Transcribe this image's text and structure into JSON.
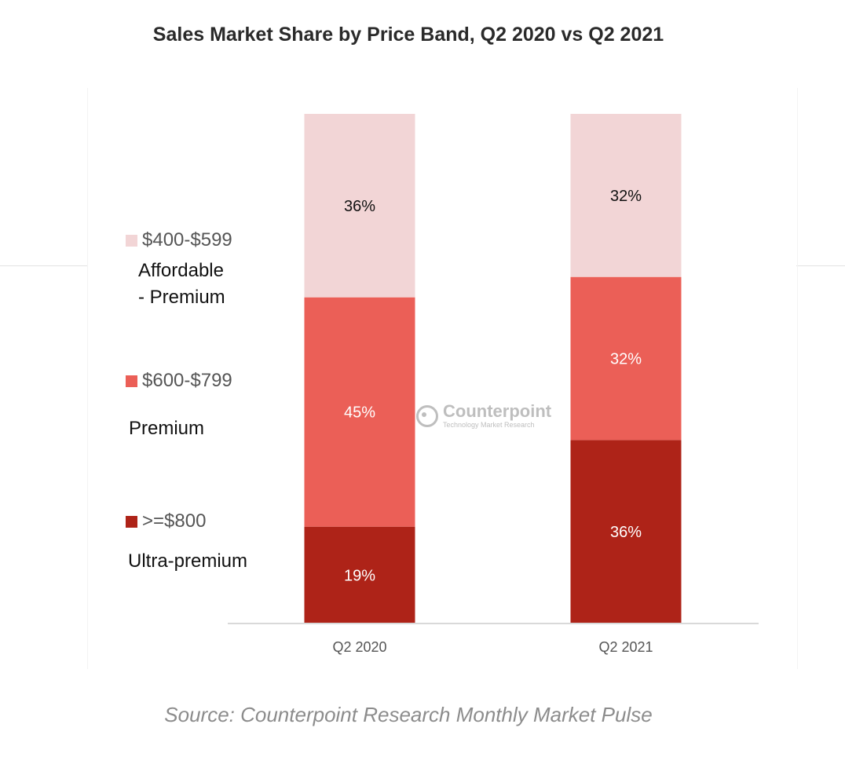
{
  "chart_data": {
    "type": "bar",
    "stacked": true,
    "percent": true,
    "title": "Sales Market Share by Price Band, Q2 2020 vs Q2 2021",
    "categories": [
      "Q2 2020",
      "Q2 2021"
    ],
    "series": [
      {
        "name": ">=$800",
        "label": "Ultra-premium",
        "color": "#ae2318",
        "label_color": "#ffffff",
        "values": [
          19,
          36
        ]
      },
      {
        "name": "$600-$799",
        "label": "Premium",
        "color": "#eb5f57",
        "label_color": "#ffffff",
        "values": [
          45,
          32
        ]
      },
      {
        "name": "$400-$599",
        "label": "Affordable - Premium",
        "color": "#f2d5d6",
        "label_color": "#111111",
        "values": [
          36,
          32
        ]
      }
    ],
    "xlabel": "",
    "ylabel": "",
    "ylim": [
      0,
      100
    ],
    "grid": false,
    "legend_position": "left",
    "value_format": "percent"
  },
  "legend": [
    {
      "range": "$400-$599",
      "name_lines": [
        "Affordable",
        "- Premium"
      ],
      "color": "#f2d5d6"
    },
    {
      "range": "$600-$799",
      "name_lines": [
        "Premium"
      ],
      "color": "#eb5f57"
    },
    {
      "range": ">=$800",
      "name_lines": [
        "Ultra-premium"
      ],
      "color": "#ae2318"
    }
  ],
  "watermark": {
    "name": "Counterpoint",
    "tagline": "Technology Market Research"
  },
  "source": "Source: Counterpoint Research Monthly Market Pulse"
}
